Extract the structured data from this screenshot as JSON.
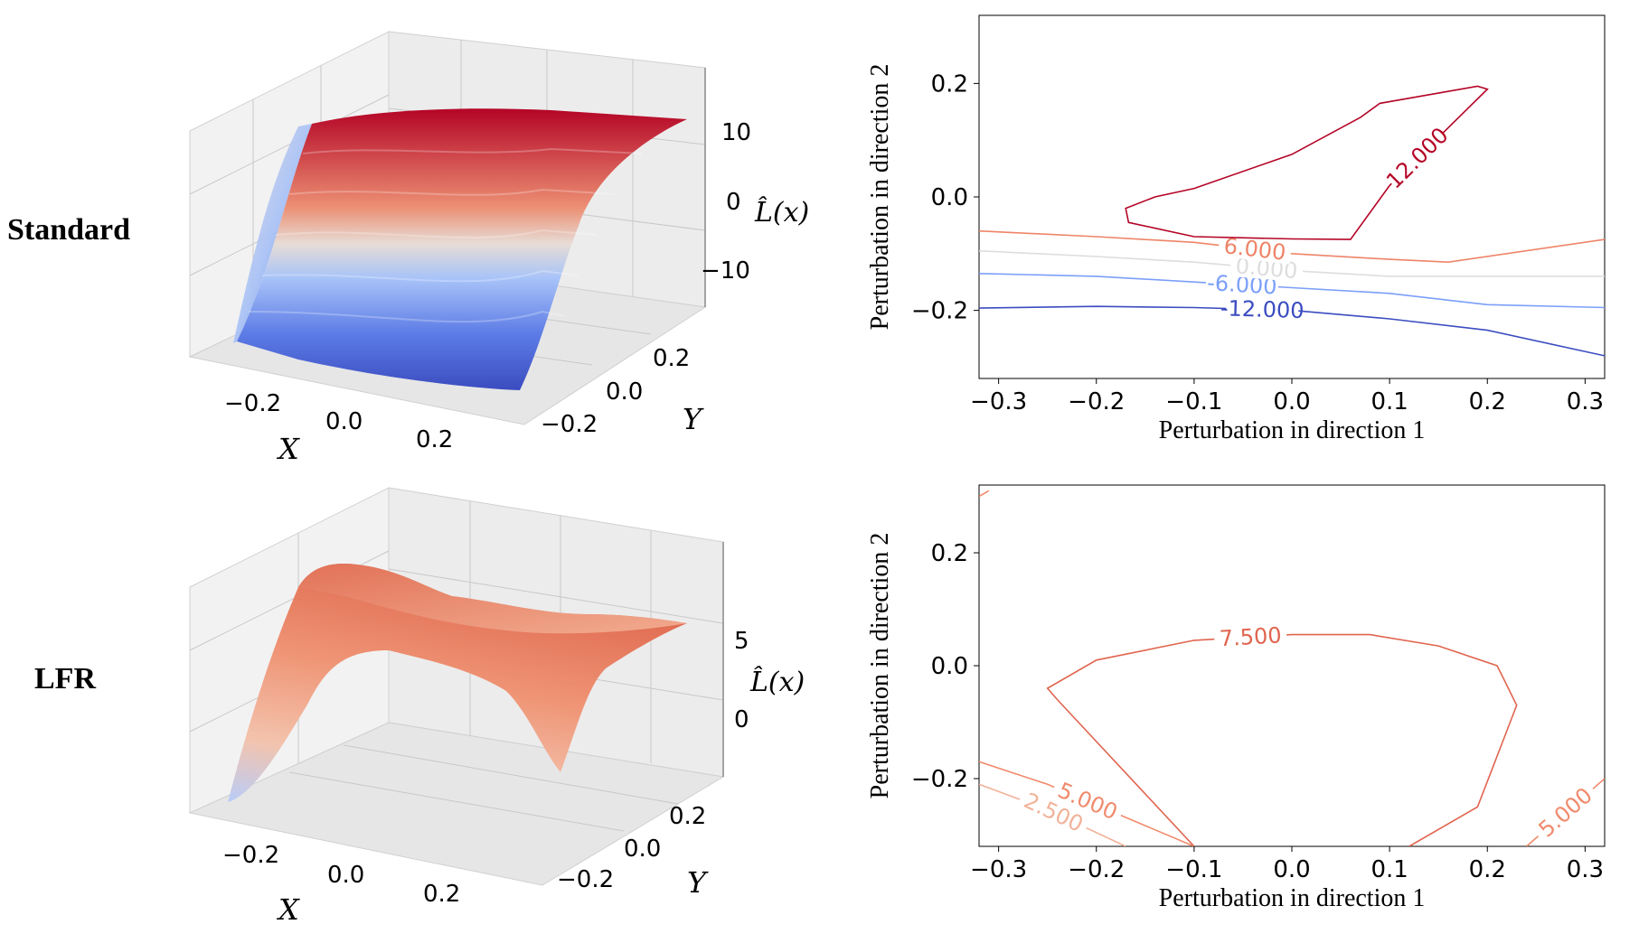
{
  "colors": {
    "c_n12": "#3b4cc0",
    "c_n6": "#7b9ff9",
    "c_0": "#dddddd",
    "c_2_5": "#f1b299",
    "c_5": "#f08a6c",
    "c_6": "#ee8468",
    "c_7_5": "#e0654f",
    "c_12": "#b40426",
    "pane": "#f2f2f2",
    "grid": "#c8c8c8"
  },
  "chart_data": [
    {
      "id": "standard-3d",
      "type": "surface3d",
      "row_label": "Standard",
      "xlabel": "X",
      "ylabel": "Y",
      "zlabel": "L̂(x)",
      "x_ticks": [
        "−0.2",
        "0.0",
        "0.2"
      ],
      "y_ticks": [
        "−0.2",
        "0.0",
        "0.2"
      ],
      "z_ticks": [
        "10",
        "0",
        "−10"
      ],
      "xlim": [
        -0.3,
        0.3
      ],
      "ylim": [
        -0.3,
        0.3
      ],
      "zlim": [
        -15,
        15
      ],
      "colormap": "coolwarm"
    },
    {
      "id": "standard-contour",
      "type": "contour",
      "xlabel": "Perturbation in direction 1",
      "ylabel": "Perturbation in direction 2",
      "x_ticks": [
        "−0.3",
        "−0.2",
        "−0.1",
        "0.0",
        "0.1",
        "0.2",
        "0.3"
      ],
      "y_ticks": [
        "0.2",
        "0.0",
        "−0.2"
      ],
      "xlim": [
        -0.32,
        0.32
      ],
      "ylim": [
        -0.32,
        0.32
      ],
      "levels": [
        {
          "value": -12,
          "label": "-12.000",
          "color_key": "c_n12",
          "points": [
            [
              -0.32,
              -0.196
            ],
            [
              -0.2,
              -0.193
            ],
            [
              -0.1,
              -0.195
            ],
            [
              0.0,
              -0.2
            ],
            [
              0.1,
              -0.215
            ],
            [
              0.2,
              -0.235
            ],
            [
              0.32,
              -0.28
            ]
          ]
        },
        {
          "value": -6,
          "label": "-6.000",
          "color_key": "c_n6",
          "points": [
            [
              -0.32,
              -0.135
            ],
            [
              -0.2,
              -0.14
            ],
            [
              -0.1,
              -0.15
            ],
            [
              0.0,
              -0.16
            ],
            [
              0.1,
              -0.17
            ],
            [
              0.2,
              -0.19
            ],
            [
              0.32,
              -0.195
            ]
          ]
        },
        {
          "value": 0,
          "label": "0.000",
          "color_key": "c_0",
          "points": [
            [
              -0.32,
              -0.095
            ],
            [
              -0.2,
              -0.105
            ],
            [
              -0.1,
              -0.115
            ],
            [
              0.0,
              -0.13
            ],
            [
              0.1,
              -0.14
            ],
            [
              0.2,
              -0.14
            ],
            [
              0.32,
              -0.14
            ]
          ]
        },
        {
          "value": 6,
          "label": "6.000",
          "color_key": "c_6",
          "points": [
            [
              -0.32,
              -0.06
            ],
            [
              -0.2,
              -0.07
            ],
            [
              -0.1,
              -0.08
            ],
            [
              0.0,
              -0.1
            ],
            [
              0.1,
              -0.11
            ],
            [
              0.16,
              -0.115
            ],
            [
              0.32,
              -0.075
            ]
          ]
        },
        {
          "value": 12,
          "label": "12.000",
          "color_key": "c_12",
          "points": [
            [
              0.07,
              0.14
            ],
            [
              0.09,
              0.165
            ],
            [
              0.19,
              0.195
            ],
            [
              0.2,
              0.19
            ],
            [
              0.1,
              0.02
            ],
            [
              0.06,
              -0.075
            ],
            [
              0.0,
              -0.074
            ],
            [
              -0.1,
              -0.07
            ],
            [
              -0.167,
              -0.045
            ],
            [
              -0.17,
              -0.02
            ],
            [
              -0.14,
              0.0
            ],
            [
              -0.1,
              0.015
            ],
            [
              0.0,
              0.075
            ],
            [
              0.07,
              0.14
            ]
          ]
        }
      ]
    },
    {
      "id": "lfr-3d",
      "type": "surface3d",
      "row_label": "LFR",
      "xlabel": "X",
      "ylabel": "Y",
      "zlabel": "L̂(x)",
      "x_ticks": [
        "−0.2",
        "0.0",
        "0.2"
      ],
      "y_ticks": [
        "−0.2",
        "0.0",
        "0.2"
      ],
      "z_ticks": [
        "5",
        "0"
      ],
      "xlim": [
        -0.3,
        0.3
      ],
      "ylim": [
        -0.3,
        0.3
      ],
      "zlim": [
        -3,
        9
      ],
      "colormap": "coolwarm"
    },
    {
      "id": "lfr-contour",
      "type": "contour",
      "xlabel": "Perturbation in direction 1",
      "ylabel": "Perturbation in direction 2",
      "x_ticks": [
        "−0.3",
        "−0.2",
        "−0.1",
        "0.0",
        "0.1",
        "0.2",
        "0.3"
      ],
      "y_ticks": [
        "0.2",
        "0.0",
        "−0.2"
      ],
      "xlim": [
        -0.32,
        0.32
      ],
      "ylim": [
        -0.32,
        0.32
      ],
      "levels": [
        {
          "value": 2.5,
          "label": "2.500",
          "color_key": "c_2_5",
          "points": [
            [
              -0.32,
              -0.21
            ],
            [
              -0.25,
              -0.255
            ],
            [
              -0.17,
              -0.32
            ]
          ]
        },
        {
          "value": 5,
          "label": "5.000",
          "color_key": "c_5",
          "points": [
            [
              -0.32,
              -0.17
            ],
            [
              -0.25,
              -0.21
            ],
            [
              -0.1,
              -0.32
            ]
          ]
        },
        {
          "value": 5,
          "label": "5.000",
          "color_key": "c_5",
          "points": [
            [
              0.24,
              -0.32
            ],
            [
              0.3,
              -0.23
            ],
            [
              0.32,
              -0.2
            ]
          ]
        },
        {
          "value": 5,
          "label": "",
          "color_key": "c_5",
          "points": [
            [
              -0.31,
              0.31
            ],
            [
              -0.32,
              0.3
            ]
          ]
        },
        {
          "value": 7.5,
          "label": "7.500",
          "color_key": "c_7_5",
          "points": [
            [
              -0.1,
              -0.32
            ],
            [
              -0.24,
              -0.06
            ],
            [
              -0.25,
              -0.04
            ],
            [
              -0.2,
              0.01
            ],
            [
              -0.1,
              0.045
            ],
            [
              0.0,
              0.055
            ],
            [
              0.08,
              0.055
            ],
            [
              0.15,
              0.035
            ],
            [
              0.21,
              0.0
            ],
            [
              0.23,
              -0.07
            ],
            [
              0.21,
              -0.16
            ],
            [
              0.19,
              -0.25
            ],
            [
              0.12,
              -0.32
            ]
          ]
        }
      ]
    }
  ]
}
